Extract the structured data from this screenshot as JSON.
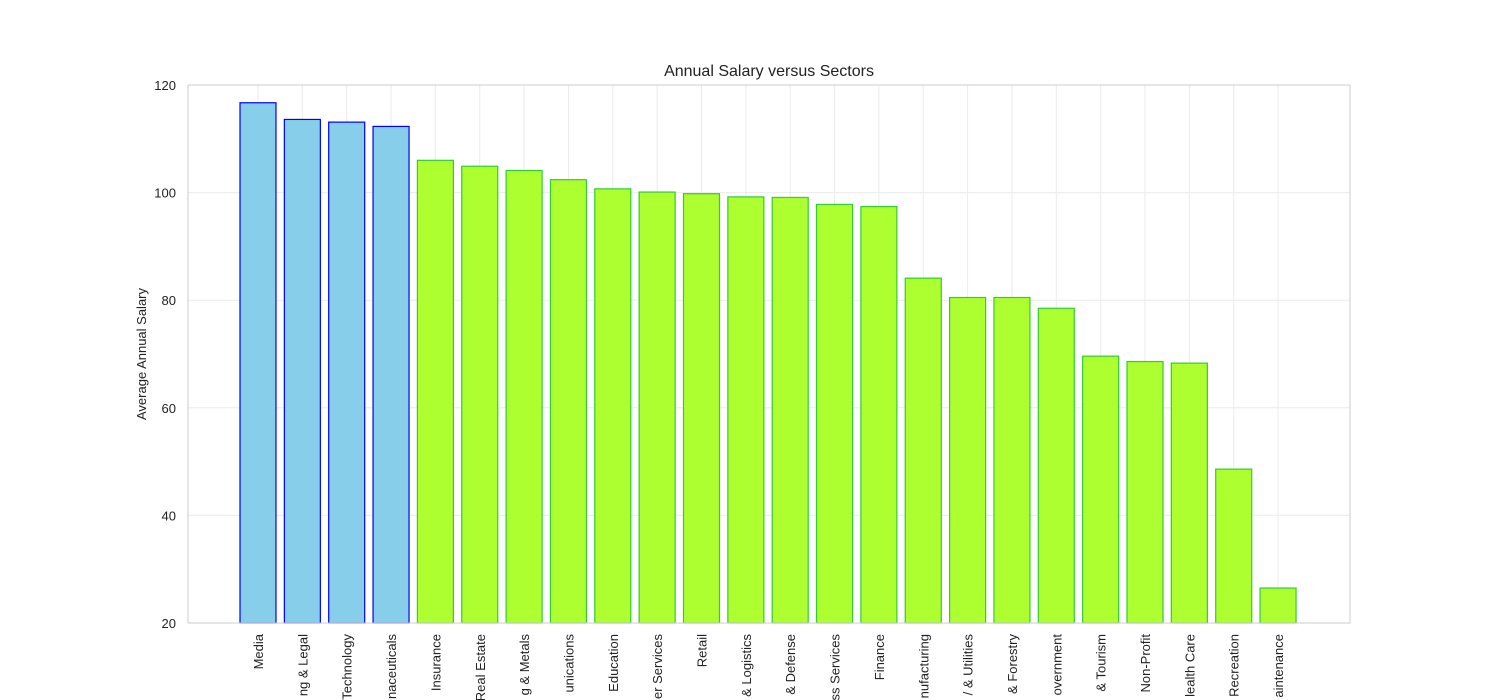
{
  "chart_data": {
    "type": "bar",
    "title": "Annual Salary versus Sectors",
    "xlabel": "",
    "ylabel": "Average Annual Salary",
    "ylim": [
      20,
      120
    ],
    "yticks": [
      20,
      40,
      60,
      80,
      100,
      120
    ],
    "grid": true,
    "categories": [
      "Media",
      "Accounting & Legal",
      "Information Technology",
      "Biotech & Pharmaceuticals",
      "Insurance",
      "Real Estate",
      "Mining & Metals",
      "Telecommunications",
      "Education",
      "Consumer Services",
      "Retail",
      "Transportation & Logistics",
      "Aerospace & Defense",
      "Business Services",
      "Finance",
      "Manufacturing",
      "Oil, Gas, Energy & Utilities",
      "Agriculture & Forestry",
      "Government",
      "Travel & Tourism",
      "Non-Profit",
      "Health Care",
      "Arts, Entertainment & Recreation",
      "Construction, Repair & Maintenance"
    ],
    "category_display": [
      "Media",
      "ng & Legal",
      "Technology",
      "naceuticals",
      "Insurance",
      "Real Estate",
      "g & Metals",
      "unications",
      "Education",
      "er Services",
      "Retail",
      "& Logistics",
      "& Defense",
      "ss Services",
      "Finance",
      "nufacturing",
      "/ & Utilities",
      "& Forestry",
      "overnment",
      "& Tourism",
      "Non-Profit",
      "lealth Care",
      "Recreation",
      "aintenance"
    ],
    "values": [
      116.7,
      113.6,
      113.1,
      112.3,
      106.0,
      104.9,
      104.1,
      102.4,
      100.7,
      100.1,
      99.8,
      99.2,
      99.1,
      97.8,
      97.4,
      84.1,
      80.5,
      80.5,
      78.5,
      69.6,
      68.6,
      68.3,
      48.6,
      26.5
    ],
    "highlight_count": 4,
    "colors": {
      "highlight_fill": "#87ceeb",
      "highlight_edge": "#0000ff",
      "normal_fill": "#adff2f",
      "normal_edge": "#32cd32",
      "grid": "#ebebeb",
      "frame": "#cccccc"
    }
  }
}
